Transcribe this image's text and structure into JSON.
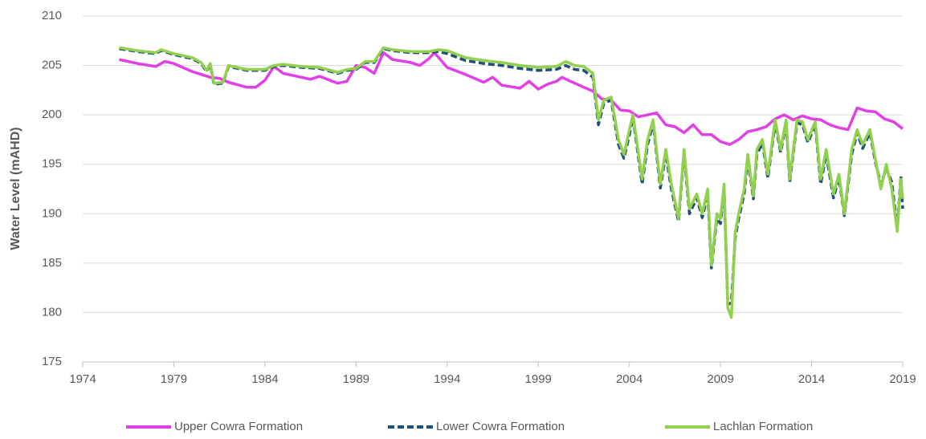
{
  "chart_data": {
    "type": "line",
    "y_label": "Water Level (mAHD)",
    "xlim": [
      1974,
      2019
    ],
    "xticks": [
      1974,
      1979,
      1984,
      1989,
      1994,
      1999,
      2004,
      2009,
      2014,
      2019
    ],
    "ylim": [
      175,
      210
    ],
    "yticks": [
      175,
      180,
      185,
      190,
      195,
      200,
      205,
      210
    ],
    "grid": true,
    "legend": "bottom",
    "series": [
      {
        "name": "Upper Cowra Formation",
        "color": "#e040e6",
        "dash": false,
        "x": [
          1976,
          1977,
          1978,
          1978.5,
          1979,
          1980,
          1981,
          1981.5,
          1982,
          1983,
          1983.5,
          1984,
          1984.5,
          1985,
          1986,
          1986.5,
          1987,
          1988,
          1988.5,
          1989,
          1989.5,
          1990,
          1990.5,
          1991,
          1992,
          1992.5,
          1993,
          1993.3,
          1994,
          1995,
          1996,
          1996.5,
          1997,
          1998,
          1998.5,
          1999,
          1999.5,
          2000,
          2000.3,
          2001,
          2001.5,
          2002,
          2002.5,
          2003,
          2003.5,
          2004,
          2004.5,
          2005,
          2005.5,
          2006,
          2006.5,
          2007,
          2007.5,
          2008,
          2008.5,
          2009,
          2009.5,
          2010,
          2010.5,
          2011,
          2011.5,
          2012,
          2012.5,
          2013,
          2013.5,
          2014,
          2014.5,
          2015,
          2015.5,
          2016,
          2016.5,
          2017,
          2017.5,
          2018,
          2018.5,
          2019
        ],
        "values": [
          205.6,
          205.2,
          204.9,
          205.4,
          205.2,
          204.4,
          203.8,
          203.7,
          203.3,
          202.8,
          202.8,
          203.5,
          204.9,
          204.2,
          203.8,
          203.6,
          203.9,
          203.2,
          203.4,
          205.0,
          204.8,
          204.2,
          206.3,
          205.6,
          205.3,
          205.0,
          205.7,
          206.3,
          204.8,
          204.1,
          203.3,
          203.8,
          203.0,
          202.7,
          203.4,
          202.6,
          203.1,
          203.4,
          203.8,
          203.2,
          202.8,
          202.4,
          201.6,
          201.5,
          200.5,
          200.4,
          199.8,
          200.0,
          200.2,
          199.0,
          198.8,
          198.2,
          199.0,
          198.0,
          198.0,
          197.3,
          197.0,
          197.5,
          198.3,
          198.5,
          198.8,
          199.6,
          200.0,
          199.5,
          199.9,
          199.6,
          199.5,
          199.0,
          198.7,
          198.5,
          200.7,
          200.4,
          200.3,
          199.6,
          199.3,
          198.6
        ]
      },
      {
        "name": "Lower Cowra Formation",
        "color": "#1f4e79",
        "dash": true,
        "x": [
          1976,
          1977,
          1978,
          1978.3,
          1979,
          1980,
          1980.5,
          1980.8,
          1981,
          1981.2,
          1981.7,
          1982,
          1983,
          1984,
          1984.5,
          1985,
          1986,
          1987,
          1988,
          1988.5,
          1989,
          1989.5,
          1990,
          1990.5,
          1991,
          1992,
          1993,
          1993.5,
          1994,
          1995,
          1996,
          1997,
          1998,
          1999,
          2000,
          2000.5,
          2001,
          2001.5,
          2002,
          2002.3,
          2002.6,
          2003,
          2003.4,
          2003.7,
          2004,
          2004.2,
          2004.7,
          2005,
          2005.3,
          2005.7,
          2006,
          2006.3,
          2006.7,
          2007,
          2007.3,
          2007.7,
          2008,
          2008.3,
          2008.5,
          2008.8,
          2009,
          2009.2,
          2009.4,
          2009.6,
          2009.8,
          2010,
          2010.3,
          2010.5,
          2010.8,
          2011,
          2011.3,
          2011.6,
          2012,
          2012.3,
          2012.6,
          2012.8,
          2013.2,
          2013.5,
          2013.8,
          2014.2,
          2014.5,
          2014.8,
          2015.2,
          2015.5,
          2015.8,
          2016.2,
          2016.5,
          2016.8,
          2017.2,
          2017.5,
          2017.8,
          2018.1,
          2018.4,
          2018.7,
          2018.9,
          2019
        ],
        "values": [
          206.7,
          206.4,
          206.2,
          206.5,
          206.1,
          205.7,
          205.2,
          204.4,
          205.1,
          203.1,
          203.2,
          204.9,
          204.5,
          204.5,
          204.9,
          205.0,
          204.8,
          204.7,
          204.2,
          204.5,
          204.6,
          205.3,
          205.3,
          206.7,
          206.5,
          206.3,
          206.3,
          206.4,
          206.2,
          205.5,
          205.2,
          205.0,
          204.7,
          204.5,
          204.6,
          205.0,
          204.6,
          204.5,
          203.8,
          199.0,
          201.2,
          201.5,
          197.0,
          195.6,
          198.0,
          199.7,
          193.0,
          197.0,
          199.2,
          192.6,
          196.0,
          192.5,
          189.2,
          196.2,
          190.0,
          191.6,
          189.6,
          192.0,
          184.5,
          189.5,
          189.0,
          192.6,
          180.8,
          181.0,
          187.5,
          189.5,
          192.0,
          195.6,
          191.5,
          196.0,
          197.2,
          193.6,
          199.2,
          196.2,
          199.2,
          193.2,
          199.2,
          199.0,
          197.2,
          199.0,
          193.0,
          196.0,
          191.6,
          193.6,
          189.8,
          196.0,
          198.2,
          196.6,
          198.2,
          195.2,
          193.0,
          194.6,
          193.2,
          188.5,
          193.8,
          190.5
        ]
      },
      {
        "name": "Lachlan Formation",
        "color": "#92d050",
        "dash": false,
        "x": [
          1976,
          1977,
          1978,
          1978.3,
          1979,
          1980,
          1980.5,
          1980.8,
          1981,
          1981.2,
          1981.7,
          1982,
          1983,
          1984,
          1984.5,
          1985,
          1986,
          1987,
          1988,
          1988.5,
          1989,
          1989.5,
          1990,
          1990.5,
          1991,
          1992,
          1993,
          1993.5,
          1994,
          1995,
          1996,
          1997,
          1998,
          1999,
          2000,
          2000.5,
          2001,
          2001.5,
          2002,
          2002.3,
          2002.6,
          2003,
          2003.4,
          2003.7,
          2004,
          2004.2,
          2004.7,
          2005,
          2005.3,
          2005.7,
          2006,
          2006.3,
          2006.7,
          2007,
          2007.3,
          2007.7,
          2008,
          2008.3,
          2008.5,
          2008.8,
          2009,
          2009.2,
          2009.4,
          2009.6,
          2009.8,
          2010,
          2010.3,
          2010.5,
          2010.8,
          2011,
          2011.3,
          2011.6,
          2012,
          2012.3,
          2012.6,
          2012.8,
          2013.2,
          2013.5,
          2013.8,
          2014.2,
          2014.5,
          2014.8,
          2015.2,
          2015.5,
          2015.8,
          2016.2,
          2016.5,
          2016.8,
          2017.2,
          2017.5,
          2017.8,
          2018.1,
          2018.4,
          2018.7,
          2018.9,
          2019
        ],
        "values": [
          206.8,
          206.5,
          206.3,
          206.6,
          206.2,
          205.8,
          205.3,
          204.5,
          205.2,
          203.2,
          203.3,
          205.0,
          204.6,
          204.6,
          205.0,
          205.1,
          204.9,
          204.8,
          204.3,
          204.6,
          204.7,
          205.4,
          205.4,
          206.8,
          206.6,
          206.4,
          206.4,
          206.6,
          206.5,
          205.8,
          205.5,
          205.3,
          205.0,
          204.8,
          204.9,
          205.4,
          205.0,
          204.9,
          204.2,
          199.5,
          201.5,
          201.8,
          197.5,
          196.0,
          198.5,
          200.0,
          193.5,
          197.5,
          199.5,
          193.0,
          196.5,
          193.0,
          189.5,
          196.5,
          190.5,
          192.0,
          190.0,
          192.5,
          184.8,
          190.0,
          189.5,
          193.0,
          180.5,
          179.5,
          188.0,
          190.0,
          192.5,
          196.0,
          191.8,
          196.5,
          197.5,
          194.0,
          199.5,
          196.5,
          199.5,
          193.5,
          199.5,
          199.3,
          197.5,
          199.3,
          193.5,
          196.5,
          192.0,
          194.0,
          190.0,
          196.5,
          198.5,
          197.0,
          198.5,
          195.5,
          192.5,
          195.0,
          192.5,
          188.2,
          193.5,
          191.5
        ]
      }
    ]
  }
}
